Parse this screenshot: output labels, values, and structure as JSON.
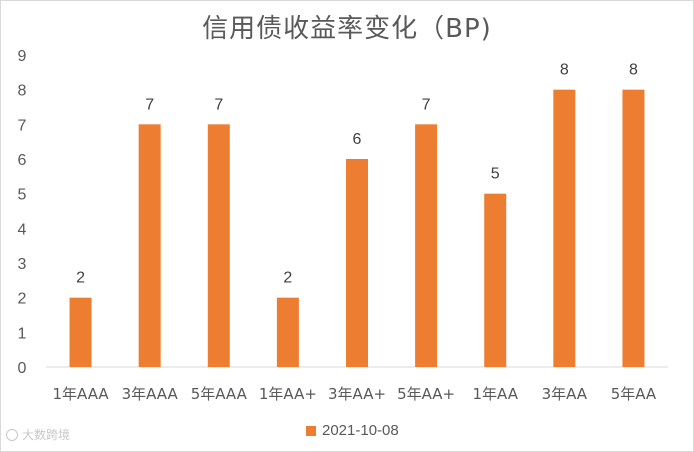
{
  "watermark": "大数跨境",
  "colors": {
    "bar": "#ED7D31",
    "axis": "#595959",
    "grid": "#d9d9d9"
  },
  "chart_data": {
    "type": "bar",
    "title": "信用债收益率变化（BP)",
    "categories": [
      "1年AAA",
      "3年AAA",
      "5年AAA",
      "1年AA+",
      "3年AA+",
      "5年AA+",
      "1年AA",
      "3年AA",
      "5年AA"
    ],
    "series": [
      {
        "name": "2021-10-08",
        "values": [
          2,
          7,
          7,
          2,
          6,
          7,
          5,
          8,
          8
        ]
      }
    ],
    "ylim": [
      0,
      9
    ],
    "yticks": [
      0,
      1,
      2,
      3,
      4,
      5,
      6,
      7,
      8,
      9
    ],
    "grid": false,
    "legend_position": "bottom",
    "data_labels": true
  }
}
